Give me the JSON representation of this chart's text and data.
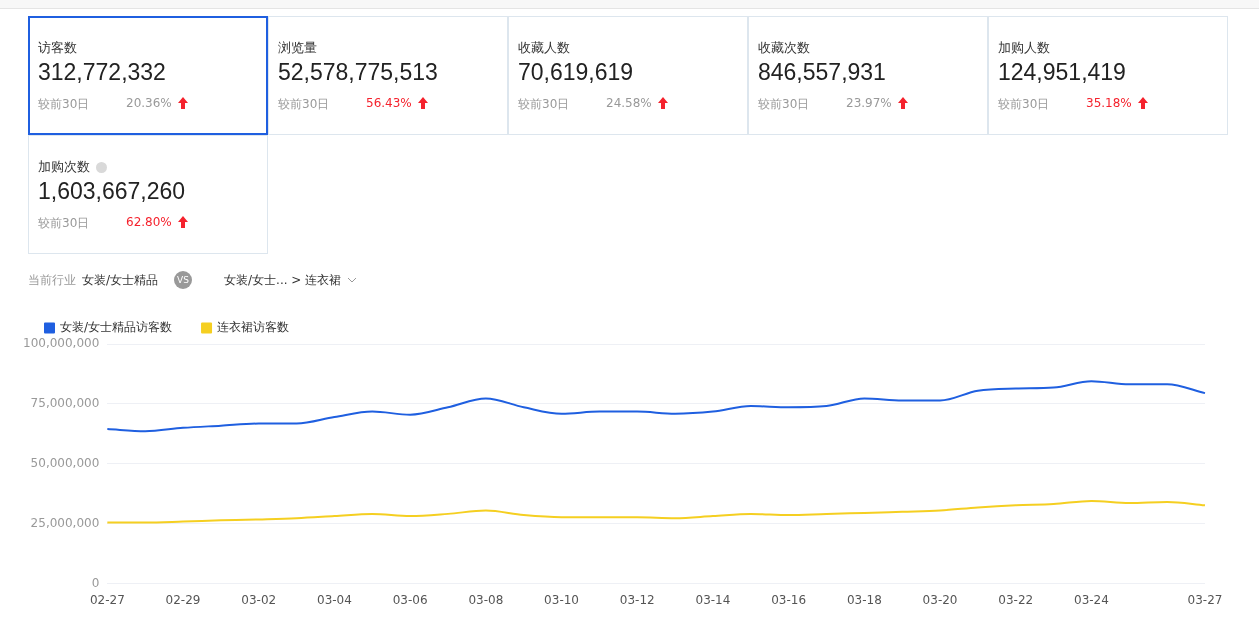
{
  "chart_data": [
    {
      "type": "other",
      "xlabel": "较前30日",
      "categories": [
        "访客数",
        "浏览量",
        "收藏人数",
        "收藏次数",
        "加购人数",
        "加购次数"
      ],
      "annotations": [
        "312,772,332",
        "52,578,775,513",
        "70,619,619",
        "846,557,931",
        "124,951,419",
        "1,603,667,260",
        "20.36%",
        "56.43%",
        "24.58%",
        "23.97%",
        "35.18%",
        "62.80%"
      ],
      "colors": [
        "#999999",
        "#f5222d",
        "#999999",
        "#999999",
        "#f5222d",
        "#f5222d"
      ]
    },
    {
      "type": "line",
      "title": "当前行业",
      "annotations": [
        "女装/女士精品",
        "VS",
        "女装/女士... > 连衣裙"
      ],
      "categories": [
        "02-27",
        null,
        "02-29",
        null,
        "03-02",
        null,
        "03-04",
        null,
        "03-06",
        null,
        "03-08",
        null,
        "03-10",
        null,
        "03-12",
        null,
        "03-14",
        null,
        "03-16",
        null,
        "03-18",
        null,
        "03-20",
        null,
        "03-22",
        null,
        "03-24",
        null,
        null,
        "03-27"
      ],
      "series": [
        {
          "name": "女装/女士精品访客数",
          "color": "#1f5fe0",
          "values": [
            64500000,
            63600000,
            65000000,
            65900000,
            66800000,
            66800000,
            69500000,
            71800000,
            70500000,
            73600000,
            77300000,
            73600000,
            70900000,
            71800000,
            71800000,
            70900000,
            71800000,
            74100000,
            73600000,
            74100000,
            77300000,
            76400000,
            76400000,
            80500000,
            81400000,
            81800000,
            84500000,
            83200000,
            83200000,
            79500000
          ]
        },
        {
          "name": "连衣裙访客数",
          "color": "#f5cf21",
          "values": [
            25500000,
            25500000,
            25900000,
            26400000,
            26800000,
            27300000,
            28200000,
            29100000,
            28200000,
            29100000,
            30500000,
            28600000,
            27700000,
            27700000,
            27700000,
            27300000,
            28200000,
            29100000,
            28600000,
            29100000,
            29500000,
            30000000,
            30500000,
            31800000,
            32700000,
            33200000,
            34500000,
            33600000,
            34100000,
            32700000
          ]
        }
      ],
      "ylim": [
        0,
        100000000
      ],
      "yticks": [
        0,
        {
          "value": 25000000,
          "label": "25,000,000"
        },
        {
          "value": 50000000,
          "label": "50,000,000"
        },
        {
          "value": 75000000,
          "label": "75,000,000"
        },
        {
          "value": 100000000,
          "label": "100,000,000"
        }
      ],
      "grid": "y",
      "legend": "top left",
      "marker": "none",
      "line_style": "solid"
    }
  ]
}
